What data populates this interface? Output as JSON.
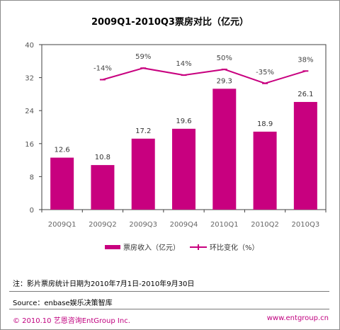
{
  "chart_data": {
    "type": "bar",
    "title": "2009Q1-2010Q3票房对比（亿元）",
    "categories": [
      "2009Q1",
      "2009Q2",
      "2009Q3",
      "2009Q4",
      "2010Q1",
      "2010Q2",
      "2010Q3"
    ],
    "series": [
      {
        "name": "票房收入（亿元）",
        "type": "bar",
        "color": "#c8007f",
        "values": [
          12.6,
          10.8,
          17.2,
          19.6,
          29.3,
          18.9,
          26.1
        ],
        "labels": [
          "12.6",
          "10.8",
          "17.2",
          "19.6",
          "29.3",
          "18.9",
          "26.1"
        ]
      },
      {
        "name": "环比变化（%）",
        "type": "line",
        "color": "#c8007f",
        "values": [
          null,
          31.5,
          34.3,
          32.6,
          34.0,
          30.6,
          33.6
        ],
        "labels": [
          "",
          "-14%",
          "59%",
          "14%",
          "50%",
          "-35%",
          "38%"
        ]
      }
    ],
    "yticks": [
      "0",
      "8",
      "16",
      "24",
      "32",
      "40"
    ],
    "ylim": [
      0,
      40
    ],
    "grid": false,
    "legend": "bottom"
  },
  "note": "注：影片票房统计日期为2010年7月1日-2010年9月30日",
  "source": "Source：enbase娱乐决策智库",
  "footer": {
    "left": "© 2010.10 艺恩咨询EntGroup Inc.",
    "right": "www.entgroup.cn"
  }
}
